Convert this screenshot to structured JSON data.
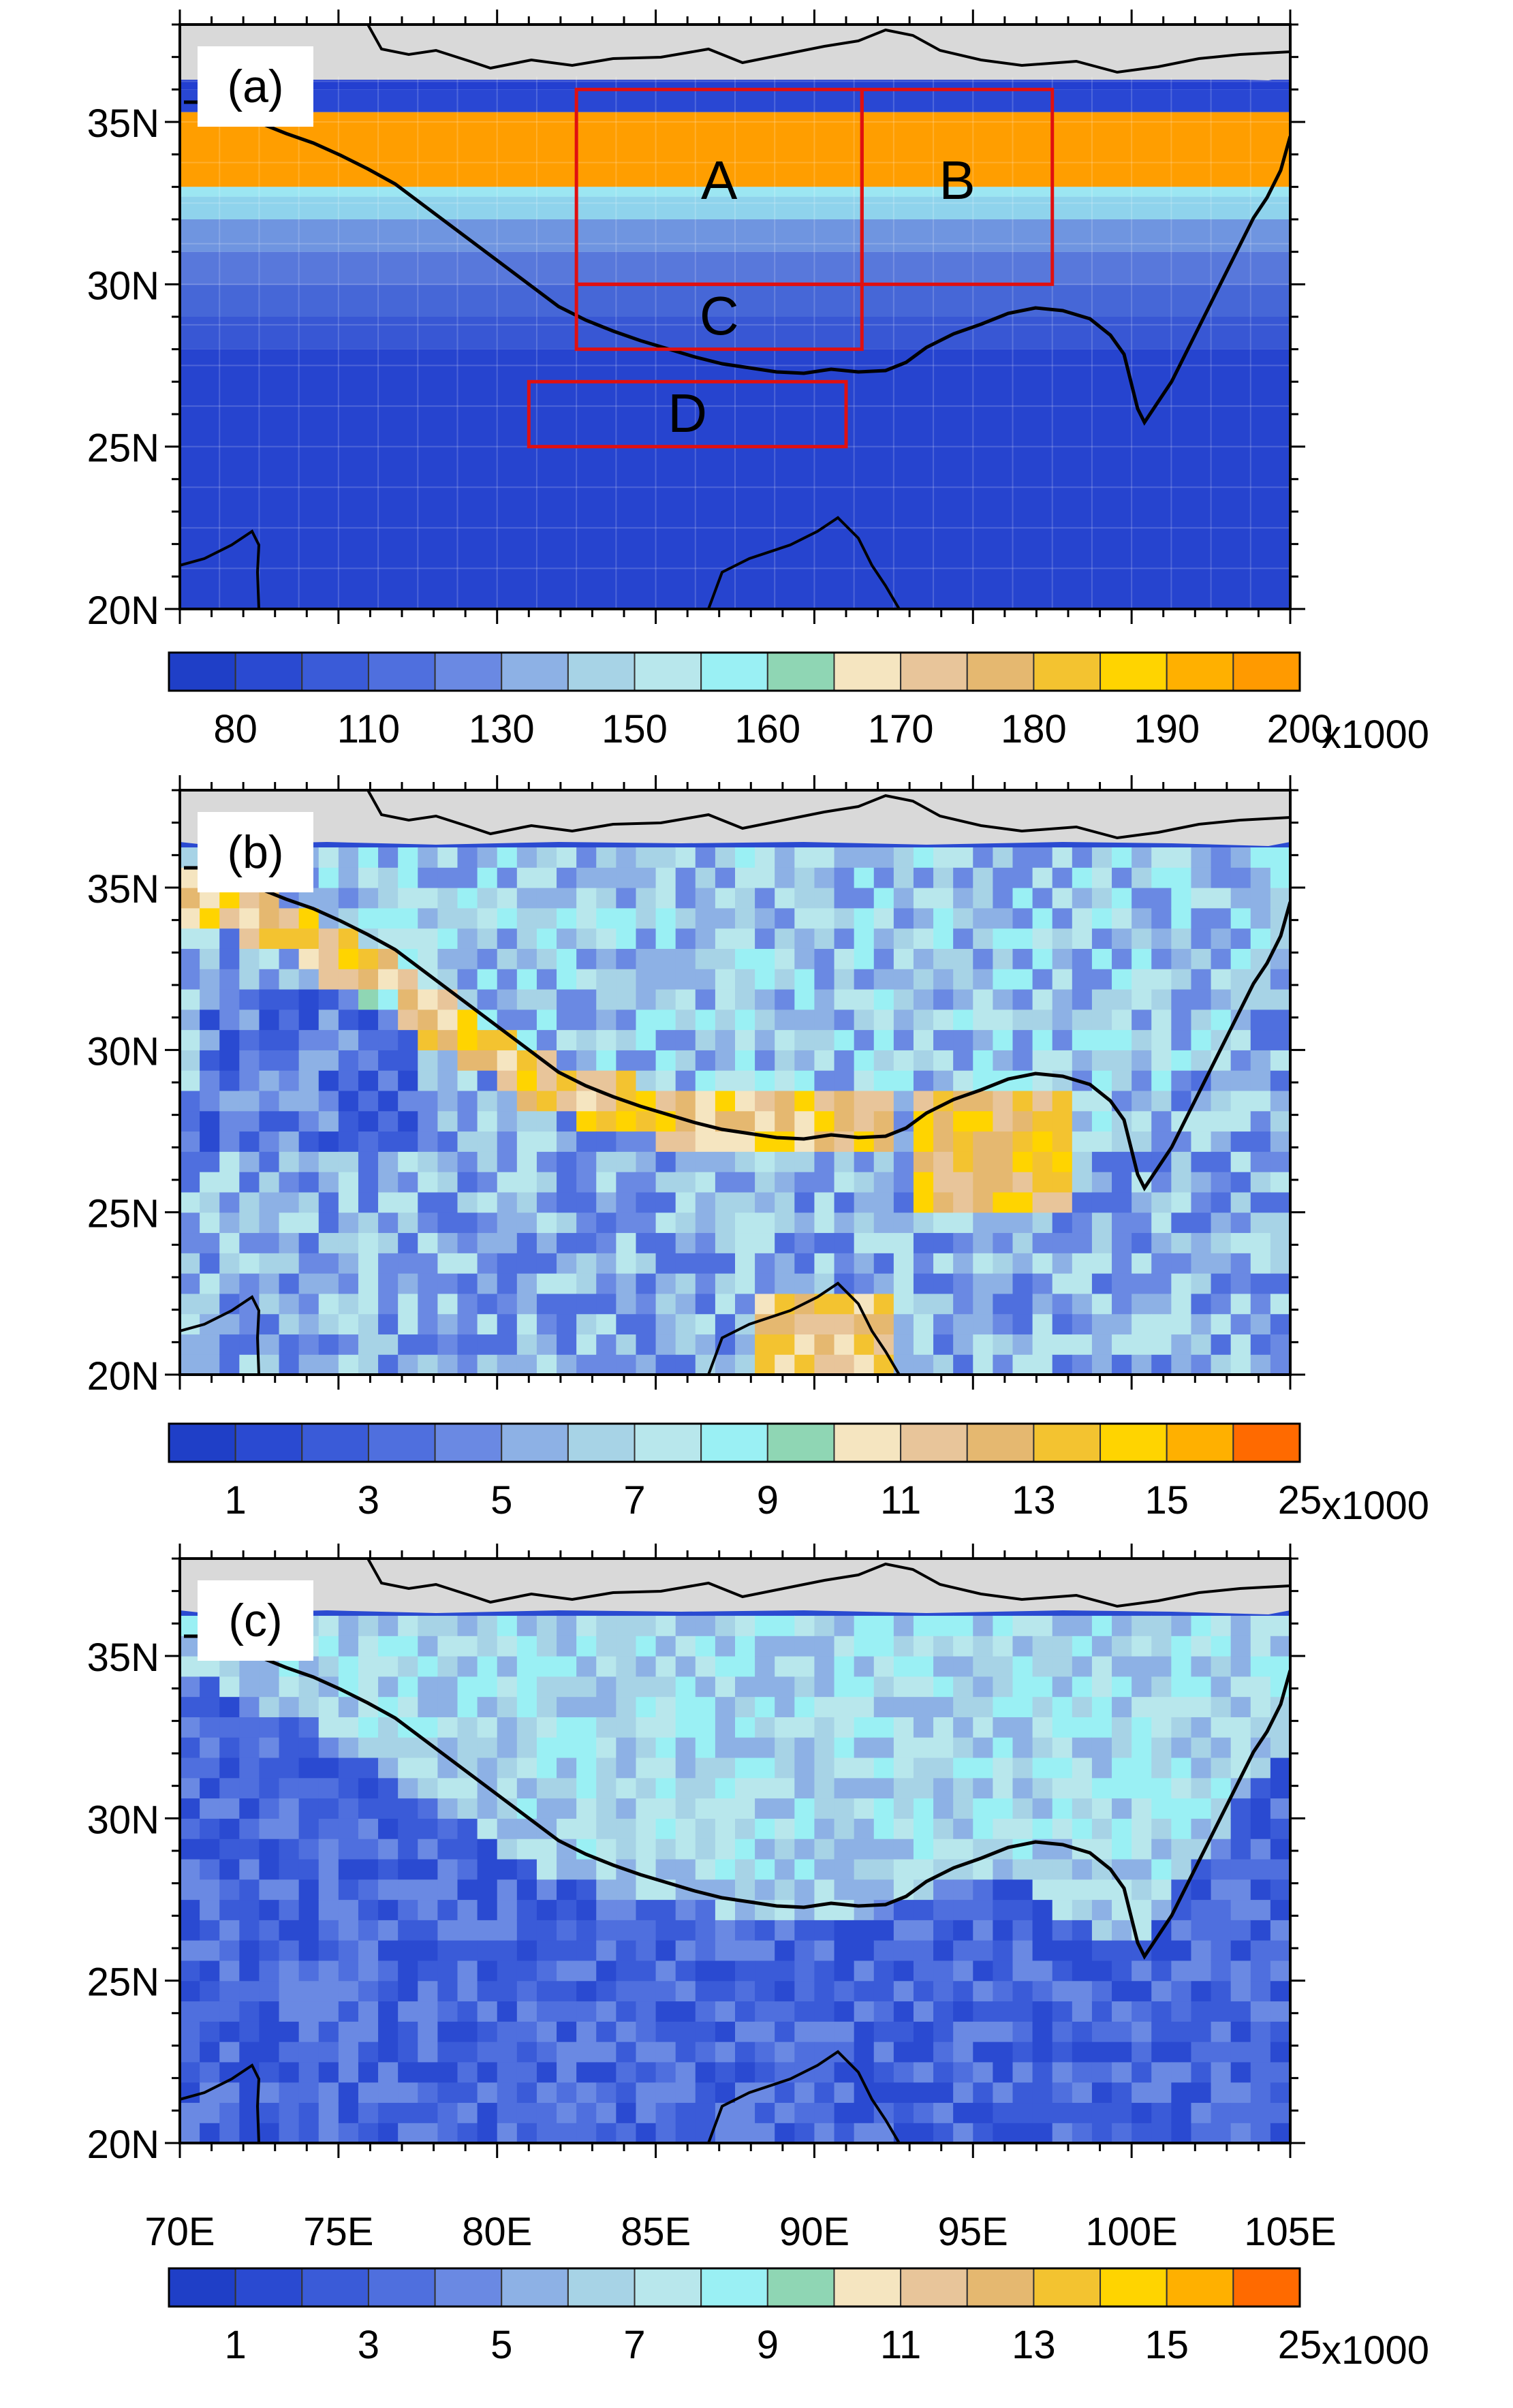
{
  "chart_data": [
    {
      "type": "heatmap",
      "panel_label": "(a)",
      "xlim_deg": [
        70,
        105
      ],
      "ylim_deg": [
        20,
        38
      ],
      "y_tick_labels": [
        "35N",
        "30N",
        "25N",
        "20N"
      ],
      "x_tick_labels": [],
      "colorbar": {
        "colors": [
          "#1f3fc7",
          "#2a4ad1",
          "#3a5bd8",
          "#4f6fde",
          "#6a89e3",
          "#8db1e5",
          "#a7d3e6",
          "#b8e7ec",
          "#9af0f4",
          "#8fd6b4",
          "#f5e5c0",
          "#e8c59a",
          "#e5b870",
          "#f3c330",
          "#ffd400",
          "#ffb000",
          "#ff9a00"
        ],
        "tick_labels": [
          "80",
          "110",
          "130",
          "150",
          "160",
          "170",
          "180",
          "190",
          "200"
        ],
        "multiplier": "x1000"
      },
      "background_bands": [
        {
          "lat_from": 36.3,
          "lat_to": 38,
          "color": "#d9d9d9"
        },
        {
          "lat_from": 36.0,
          "lat_to": 36.3,
          "color": "#233fd0"
        },
        {
          "lat_from": 35.3,
          "lat_to": 36.0,
          "color": "#2947d3"
        },
        {
          "lat_from": 33.0,
          "lat_to": 35.3,
          "color": "#ff9e00"
        },
        {
          "lat_from": 32.7,
          "lat_to": 33.0,
          "color": "#9ce6f2"
        },
        {
          "lat_from": 32.0,
          "lat_to": 32.7,
          "color": "#8fd3ec"
        },
        {
          "lat_from": 31.0,
          "lat_to": 32.0,
          "color": "#6f95e0"
        },
        {
          "lat_from": 30.0,
          "lat_to": 31.0,
          "color": "#5878db"
        },
        {
          "lat_from": 29.0,
          "lat_to": 30.0,
          "color": "#4667d7"
        },
        {
          "lat_from": 28.0,
          "lat_to": 29.0,
          "color": "#3857d4"
        },
        {
          "lat_from": 20.0,
          "lat_to": 28.0,
          "color": "#2644cf"
        }
      ],
      "regions": [
        {
          "label": "A",
          "lon": [
            82.5,
            91.5
          ],
          "lat": [
            30.0,
            36.0
          ]
        },
        {
          "label": "B",
          "lon": [
            91.5,
            97.5
          ],
          "lat": [
            30.0,
            36.0
          ]
        },
        {
          "label": "C",
          "lon": [
            82.5,
            91.5
          ],
          "lat": [
            28.0,
            30.0
          ]
        },
        {
          "label": "D",
          "lon": [
            81.0,
            91.0
          ],
          "lat": [
            25.0,
            27.0
          ]
        }
      ]
    },
    {
      "type": "heatmap",
      "panel_label": "(b)",
      "xlim_deg": [
        70,
        105
      ],
      "ylim_deg": [
        20,
        38
      ],
      "y_tick_labels": [
        "35N",
        "30N",
        "25N",
        "20N"
      ],
      "x_tick_labels": [],
      "colorbar": {
        "colors": [
          "#1f3fc7",
          "#2a4ad1",
          "#3a5bd8",
          "#4f6fde",
          "#6a89e3",
          "#8db1e5",
          "#a7d3e6",
          "#b8e7ec",
          "#9af0f4",
          "#8fd6b4",
          "#f5e5c0",
          "#e8c59a",
          "#e5b870",
          "#f3c330",
          "#ffd400",
          "#ffb000",
          "#ff6a00"
        ],
        "tick_labels": [
          "1",
          "3",
          "5",
          "7",
          "9",
          "11",
          "13",
          "15",
          "25"
        ],
        "multiplier": "x1000"
      }
    },
    {
      "type": "heatmap",
      "panel_label": "(c)",
      "xlim_deg": [
        70,
        105
      ],
      "ylim_deg": [
        20,
        38
      ],
      "y_tick_labels": [
        "35N",
        "30N",
        "25N",
        "20N"
      ],
      "x_tick_labels": [
        "70E",
        "75E",
        "80E",
        "85E",
        "90E",
        "95E",
        "100E",
        "105E"
      ],
      "colorbar": {
        "colors": [
          "#1f3fc7",
          "#2a4ad1",
          "#3a5bd8",
          "#4f6fde",
          "#6a89e3",
          "#8db1e5",
          "#a7d3e6",
          "#b8e7ec",
          "#9af0f4",
          "#8fd6b4",
          "#f5e5c0",
          "#e8c59a",
          "#e5b870",
          "#f3c330",
          "#ffd400",
          "#ffb000",
          "#ff6a00"
        ],
        "tick_labels": [
          "1",
          "3",
          "5",
          "7",
          "9",
          "11",
          "13",
          "15",
          "25"
        ],
        "multiplier": "x1000"
      }
    }
  ],
  "map_colors": {
    "land_mask_gray": "#d9d9d9",
    "coastline": "#000000",
    "region_box": "#e01010"
  }
}
